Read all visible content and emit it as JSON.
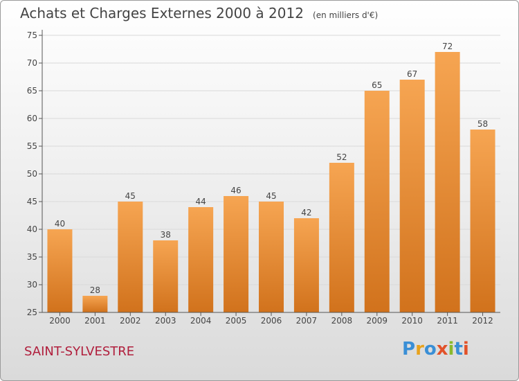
{
  "header": {
    "title": "Achats et Charges Externes 2000 à 2012",
    "subtitle": "(en milliers d'€)"
  },
  "footer": {
    "commune": "SAINT-SYLVESTRE",
    "logo": "Proxiti"
  },
  "colors": {
    "bar_top": "#f6a552",
    "bar_bottom": "#d1721c",
    "commune": "#b01e3c",
    "grid": "#d9d9d9",
    "axis": "#555555"
  },
  "chart_data": {
    "type": "bar",
    "categories": [
      "2000",
      "2001",
      "2002",
      "2003",
      "2004",
      "2005",
      "2006",
      "2007",
      "2008",
      "2009",
      "2010",
      "2011",
      "2012"
    ],
    "values": [
      40,
      28,
      45,
      38,
      44,
      46,
      45,
      42,
      52,
      65,
      67,
      72,
      58
    ],
    "data_labels": [
      "40",
      "28",
      "45",
      "38",
      "44",
      "46",
      "45",
      "42",
      "52",
      "65",
      "67",
      "72",
      "58"
    ],
    "ylim": [
      25,
      75
    ],
    "yticks": [
      25,
      30,
      35,
      40,
      45,
      50,
      55,
      60,
      65,
      70,
      75
    ],
    "ytick_labels": [
      "25",
      "30",
      "35",
      "40",
      "45",
      "50",
      "55",
      "60",
      "65",
      "70",
      "75"
    ],
    "grid": true
  }
}
